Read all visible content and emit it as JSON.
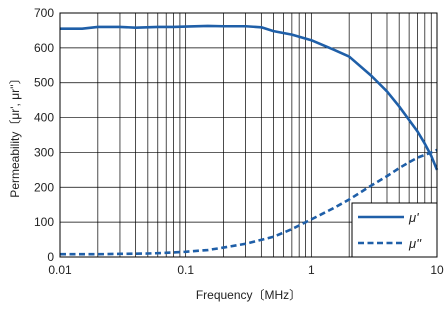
{
  "chart_data": {
    "type": "line",
    "title": "",
    "xlabel": "Frequency〔MHz〕",
    "ylabel": "Permeability〔μr', μr''〕",
    "xscale": "log",
    "xlim": [
      0.01,
      10
    ],
    "ylim": [
      0,
      700
    ],
    "xticks": [
      {
        "value": 0.01,
        "label": "0.01"
      },
      {
        "value": 0.1,
        "label": "0.1"
      },
      {
        "value": 1,
        "label": "1"
      },
      {
        "value": 10,
        "label": "10"
      }
    ],
    "yticks": [
      {
        "value": 0,
        "label": "0"
      },
      {
        "value": 100,
        "label": "100"
      },
      {
        "value": 200,
        "label": "200"
      },
      {
        "value": 300,
        "label": "300"
      },
      {
        "value": 400,
        "label": "400"
      },
      {
        "value": 500,
        "label": "500"
      },
      {
        "value": 600,
        "label": "600"
      },
      {
        "value": 700,
        "label": "700"
      }
    ],
    "grid": true,
    "legend_position": "bottom-right",
    "series": [
      {
        "name": "μ'",
        "style": "solid",
        "color": "#1f5fa8",
        "x": [
          0.01,
          0.015,
          0.02,
          0.03,
          0.04,
          0.06,
          0.08,
          0.1,
          0.15,
          0.2,
          0.3,
          0.4,
          0.5,
          0.7,
          1,
          1.5,
          2,
          3,
          4,
          5,
          6,
          7,
          8,
          9,
          10
        ],
        "y": [
          655,
          655,
          660,
          660,
          658,
          660,
          660,
          661,
          663,
          662,
          662,
          659,
          648,
          638,
          622,
          595,
          575,
          520,
          475,
          432,
          393,
          360,
          325,
          290,
          250
        ]
      },
      {
        "name": "μ''",
        "style": "dashed",
        "color": "#1f5fa8",
        "x": [
          0.01,
          0.02,
          0.03,
          0.05,
          0.07,
          0.1,
          0.15,
          0.2,
          0.3,
          0.5,
          0.7,
          1,
          1.5,
          2,
          3,
          4,
          5,
          6,
          7,
          8,
          9,
          10
        ],
        "y": [
          8,
          8,
          9,
          10,
          12,
          15,
          20,
          27,
          38,
          58,
          80,
          108,
          140,
          165,
          205,
          232,
          255,
          272,
          285,
          293,
          300,
          307
        ]
      }
    ]
  }
}
